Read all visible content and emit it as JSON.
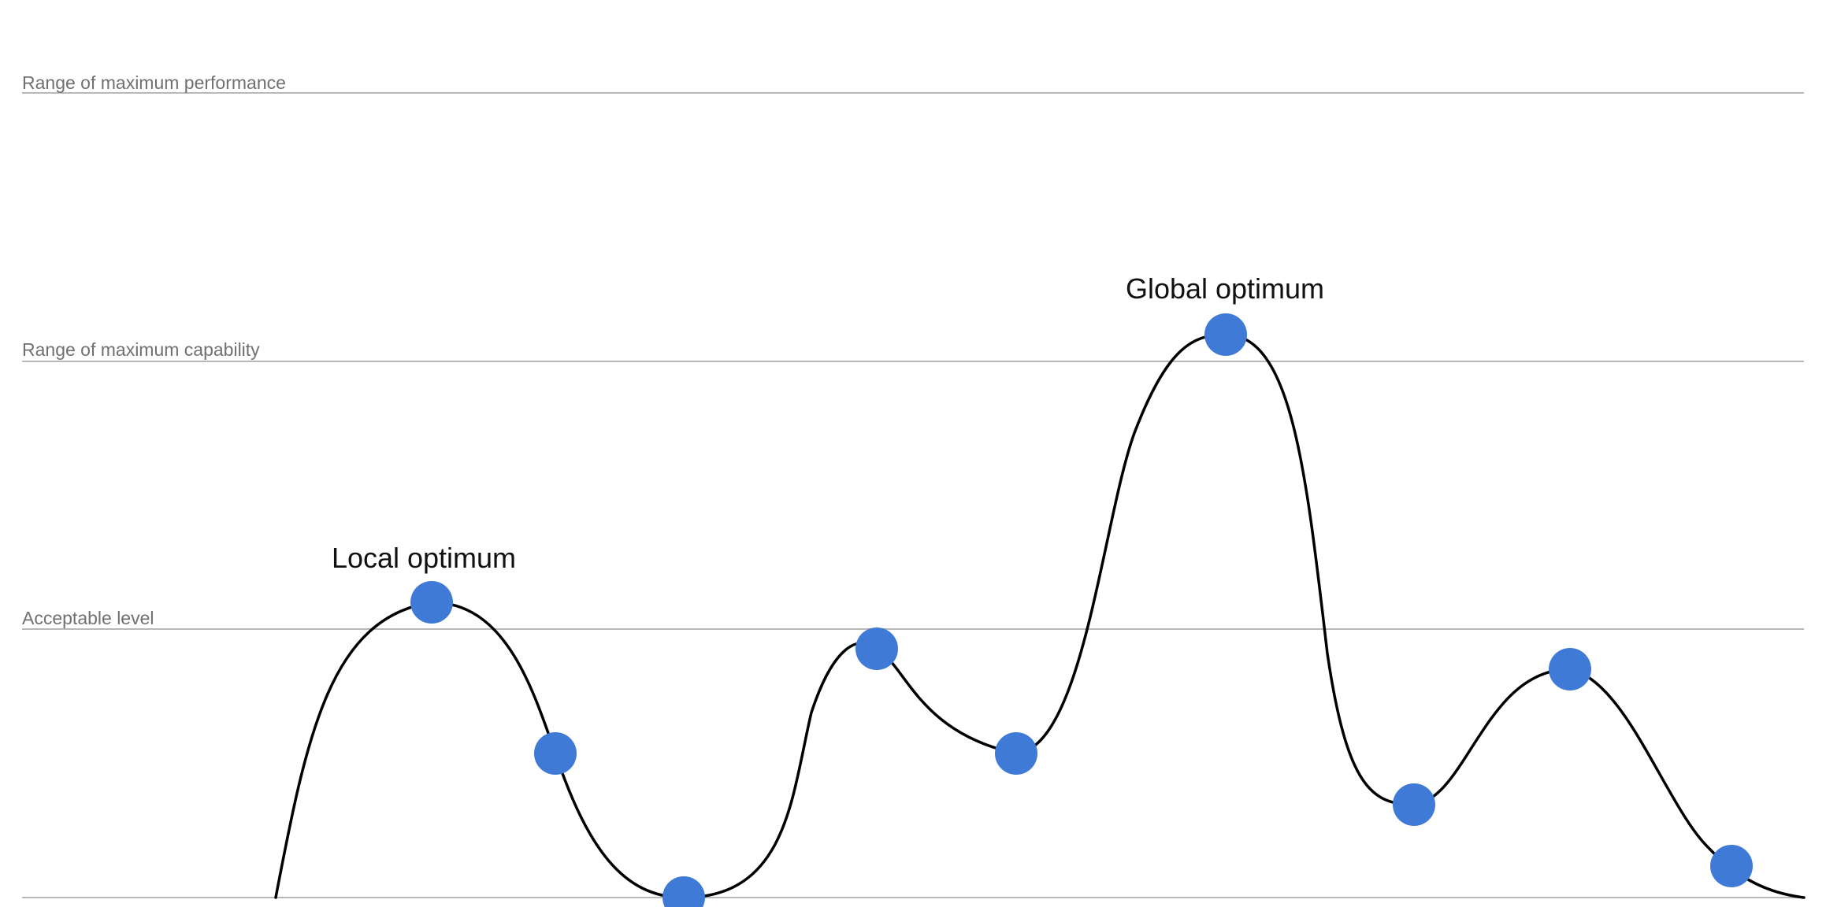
{
  "levels": [
    {
      "id": "max-performance",
      "label": "Range of maximum performance"
    },
    {
      "id": "max-capability",
      "label": "Range of maximum capability"
    },
    {
      "id": "acceptable",
      "label": "Acceptable level"
    },
    {
      "id": "baseline",
      "label": ""
    }
  ],
  "annotations": {
    "local_optimum": "Local optimum",
    "global_optimum": "Global optimum"
  },
  "colors": {
    "point": "#3f7bd6",
    "curve": "#000000",
    "level_line": "#b8b8b8",
    "level_label": "#707070"
  }
}
